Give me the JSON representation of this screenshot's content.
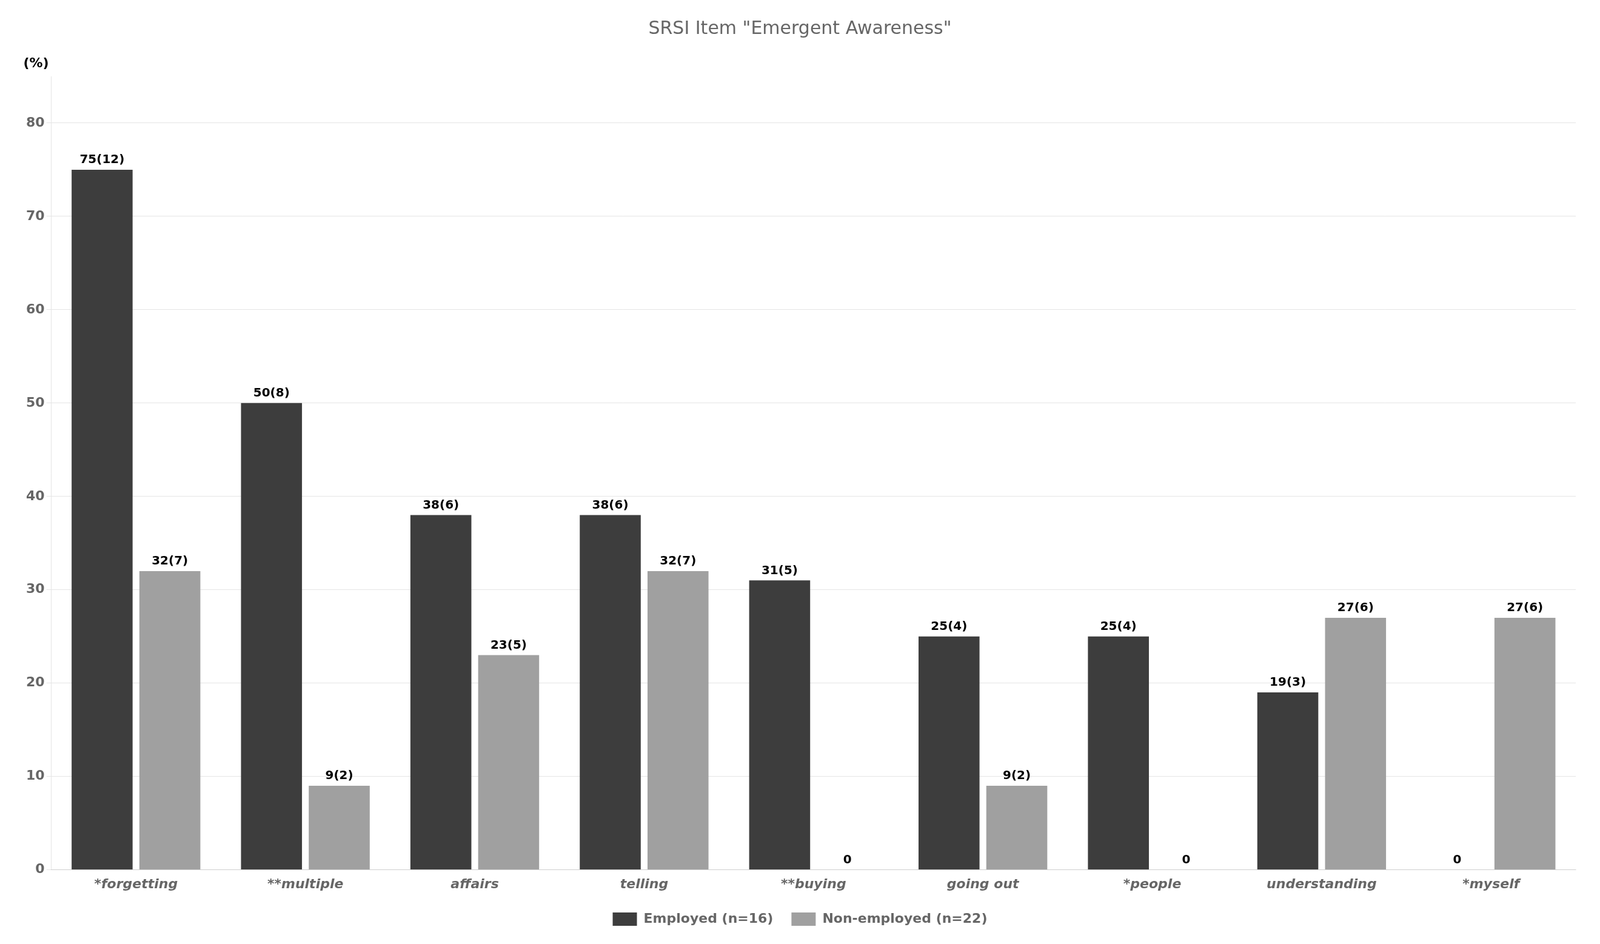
{
  "chart_data": {
    "type": "bar",
    "title": "SRSI Item \"Emergent Awareness\"",
    "categories": [
      "*forgetting",
      "**multiple",
      "affairs",
      "telling",
      "**buying",
      "going out",
      "*people",
      "understanding",
      "*myself"
    ],
    "series": [
      {
        "name": "Employed (n=16)",
        "color": "#3d3d3d",
        "values": [
          75,
          50,
          38,
          38,
          31,
          25,
          25,
          19,
          0
        ],
        "value_labels": [
          "75(12)",
          "50(8)",
          "38(6)",
          "38(6)",
          "31(5)",
          "25(4)",
          "25(4)",
          "19(3)",
          "0"
        ]
      },
      {
        "name": "Non-employed (n=22)",
        "color": "#a0a0a0",
        "values": [
          32,
          9,
          23,
          32,
          0,
          9,
          0,
          27,
          27
        ],
        "value_labels": [
          "32(7)",
          "9(2)",
          "23(5)",
          "32(7)",
          "0",
          "9(2)",
          "0",
          "27(6)",
          "27(6)"
        ]
      }
    ],
    "annotations": [
      "(%)"
    ],
    "ylim": [
      0,
      85
    ],
    "yticks": [
      0,
      10,
      20,
      30,
      40,
      50,
      60,
      70,
      80
    ],
    "grid": true,
    "legend": "bottom",
    "data_labels": true
  }
}
